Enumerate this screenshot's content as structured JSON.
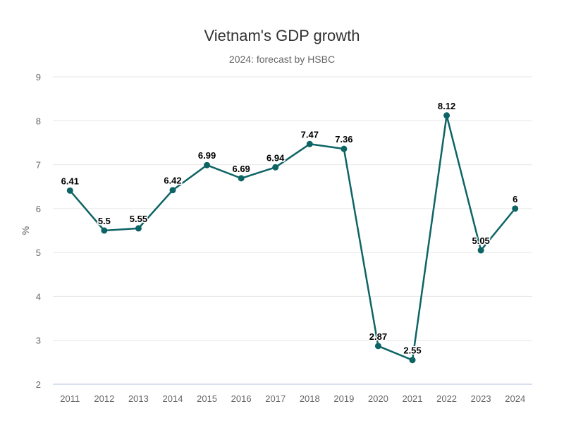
{
  "chart_data": {
    "type": "line",
    "title": "Vietnam's GDP growth",
    "subtitle": "2024: forecast by HSBC",
    "xlabel": "",
    "ylabel": "%",
    "categories": [
      "2011",
      "2012",
      "2013",
      "2014",
      "2015",
      "2016",
      "2017",
      "2018",
      "2019",
      "2020",
      "2021",
      "2022",
      "2023",
      "2024"
    ],
    "series": [
      {
        "name": "GDP growth",
        "values": [
          6.41,
          5.5,
          5.55,
          6.42,
          6.99,
          6.69,
          6.94,
          7.47,
          7.36,
          2.87,
          2.55,
          8.12,
          5.05,
          6
        ],
        "labels": [
          "6.41",
          "5.5",
          "5.55",
          "6.42",
          "6.99",
          "6.69",
          "6.94",
          "7.47",
          "7.36",
          "2.87",
          "2.55",
          "8.12",
          "5.05",
          "6"
        ],
        "color": "#0e6465"
      }
    ],
    "ylim": [
      2,
      9
    ],
    "yticks": [
      2,
      3,
      4,
      5,
      6,
      7,
      8,
      9
    ],
    "grid": true,
    "legend": "none"
  }
}
